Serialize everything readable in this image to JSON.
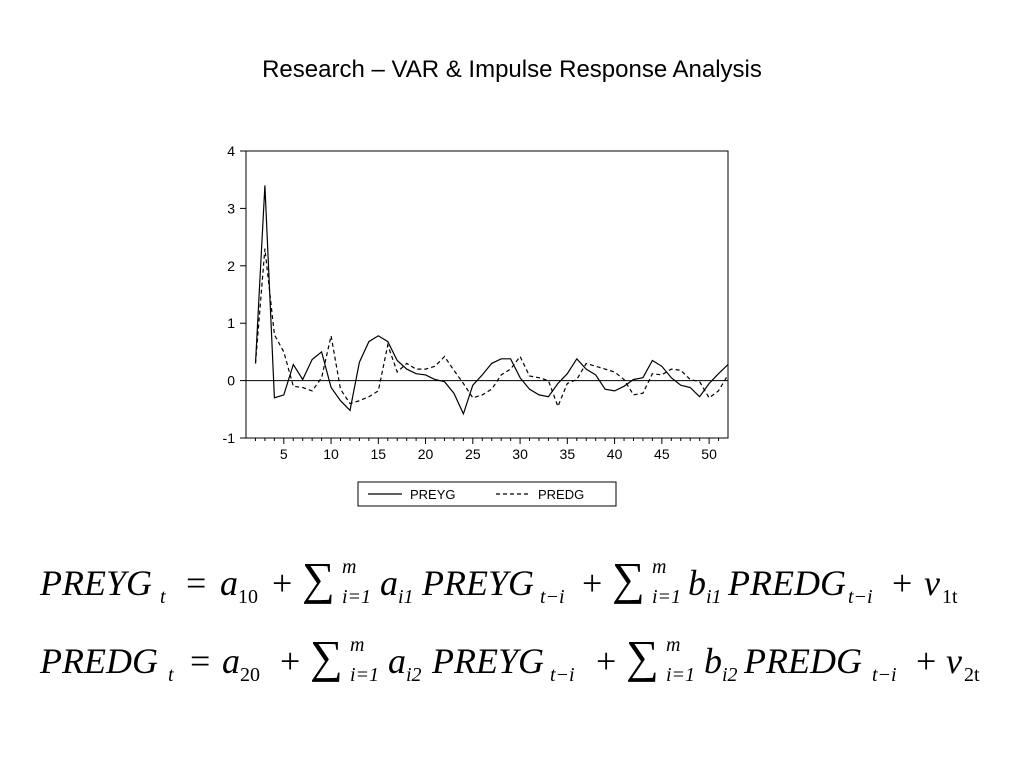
{
  "slide": {
    "title": "Research – VAR & Impulse Response Analysis"
  },
  "chart_data": {
    "type": "line",
    "title": "",
    "xlabel": "",
    "ylabel": "",
    "xlim": [
      1,
      52
    ],
    "ylim": [
      -1,
      4
    ],
    "x_ticks": [
      5,
      10,
      15,
      20,
      25,
      30,
      35,
      40,
      45,
      50
    ],
    "y_ticks": [
      -1,
      0,
      1,
      2,
      3,
      4
    ],
    "zero_line": true,
    "grid": false,
    "legend_position": "bottom",
    "x": [
      2,
      3,
      4,
      5,
      6,
      7,
      8,
      9,
      10,
      11,
      12,
      13,
      14,
      15,
      16,
      17,
      18,
      19,
      20,
      21,
      22,
      23,
      24,
      25,
      26,
      27,
      28,
      29,
      30,
      31,
      32,
      33,
      34,
      35,
      36,
      37,
      38,
      39,
      40,
      41,
      42,
      43,
      44,
      45,
      46,
      47,
      48,
      49,
      50,
      51,
      52
    ],
    "series": [
      {
        "name": "PREYG",
        "style": "solid",
        "values": [
          0.3,
          3.4,
          -0.3,
          -0.25,
          0.28,
          0.02,
          0.37,
          0.5,
          -0.12,
          -0.35,
          -0.52,
          0.32,
          0.68,
          0.78,
          0.68,
          0.35,
          0.2,
          0.12,
          0.1,
          0.02,
          -0.02,
          -0.22,
          -0.58,
          -0.08,
          0.1,
          0.3,
          0.38,
          0.38,
          0.05,
          -0.15,
          -0.25,
          -0.28,
          -0.05,
          0.12,
          0.38,
          0.2,
          0.1,
          -0.15,
          -0.18,
          -0.1,
          0.02,
          0.05,
          0.35,
          0.25,
          0.05,
          -0.08,
          -0.12,
          -0.28,
          -0.05,
          0.12,
          0.28
        ]
      },
      {
        "name": "PREDG",
        "style": "dashed",
        "values": [
          0.3,
          2.3,
          0.8,
          0.5,
          -0.1,
          -0.12,
          -0.18,
          0.05,
          0.78,
          -0.15,
          -0.4,
          -0.35,
          -0.28,
          -0.18,
          0.62,
          0.15,
          0.3,
          0.2,
          0.2,
          0.25,
          0.42,
          0.18,
          -0.05,
          -0.3,
          -0.25,
          -0.15,
          0.1,
          0.2,
          0.42,
          0.08,
          0.05,
          0.0,
          -0.45,
          -0.05,
          0.02,
          0.3,
          0.25,
          0.2,
          0.15,
          0.02,
          -0.25,
          -0.22,
          0.12,
          0.1,
          0.2,
          0.18,
          0.02,
          -0.02,
          -0.3,
          -0.18,
          0.1
        ]
      }
    ]
  },
  "equations": [
    {
      "lhs": "PREYG",
      "lhs_sub": "t",
      "eq": "=",
      "c": "a",
      "c_sub": "10",
      "plus": "+",
      "sum_top": "m",
      "sum_bot": "i=1",
      "c1": "a",
      "c1_sub": "i1",
      "v1": "PREYG",
      "v1_sub": "t−i",
      "c2": "b",
      "c2_sub": "i1",
      "v2": "PREDG",
      "v2_sub": "t−i",
      "e": "v",
      "e_sub": "1t"
    },
    {
      "lhs": "PREDG",
      "lhs_sub": "t",
      "eq": "=",
      "c": "a",
      "c_sub": "20",
      "plus": "+",
      "sum_top": "m",
      "sum_bot": "i=1",
      "c1": "a",
      "c1_sub": "i2",
      "v1": "PREYG",
      "v1_sub": "t−i",
      "c2": "b",
      "c2_sub": "i2",
      "v2": "PREDG",
      "v2_sub": "t−i",
      "e": "v",
      "e_sub": "2t"
    }
  ]
}
